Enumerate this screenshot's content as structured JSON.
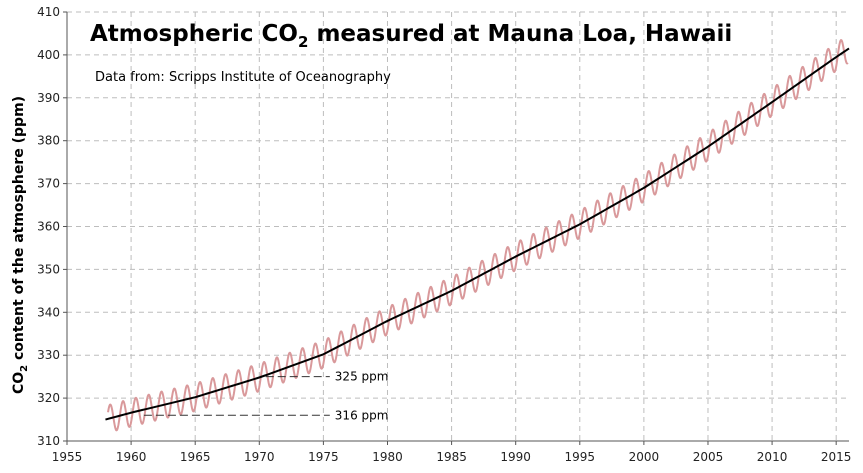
{
  "chart_data": {
    "type": "line",
    "title": {
      "prefix": "Atmospheric CO",
      "subscript": "2",
      "suffix": " measured at Mauna Loa, Hawaii"
    },
    "subtitle": "Data from: Scripps Institute of Oceanography",
    "ylabel": {
      "prefix": "CO",
      "subscript": "2",
      "suffix": " content of the atmosphere (ppm)"
    },
    "xlim": [
      1955,
      2016
    ],
    "ylim": [
      310,
      410
    ],
    "xticks": [
      1955,
      1960,
      1965,
      1970,
      1975,
      1980,
      1985,
      1990,
      1995,
      2000,
      2005,
      2010,
      2015
    ],
    "yticks": [
      310,
      320,
      330,
      340,
      350,
      360,
      370,
      380,
      390,
      400,
      410
    ],
    "grid": true,
    "series": [
      {
        "role": "monthly",
        "color": "#d9999b",
        "seasonal_amplitude": 3.2,
        "x_start": 1958.2,
        "x_end": 2015.9
      },
      {
        "role": "trend",
        "color": "#000000",
        "x": [
          1958,
          1960,
          1965,
          1970,
          1975,
          1980,
          1985,
          1990,
          1995,
          2000,
          2005,
          2010,
          2015,
          2016
        ],
        "y": [
          315,
          316.6,
          320.2,
          324.8,
          330.2,
          338.0,
          345.0,
          353.0,
          360.5,
          369.0,
          378.6,
          389.0,
          399.5,
          401.5
        ]
      }
    ],
    "annotations": [
      {
        "label": "325 ppm",
        "y": 325,
        "x_start": 1970.5,
        "x_end": 1975.5
      },
      {
        "label": "316 ppm",
        "y": 316,
        "x_start": 1961.0,
        "x_end": 1975.5
      }
    ]
  }
}
